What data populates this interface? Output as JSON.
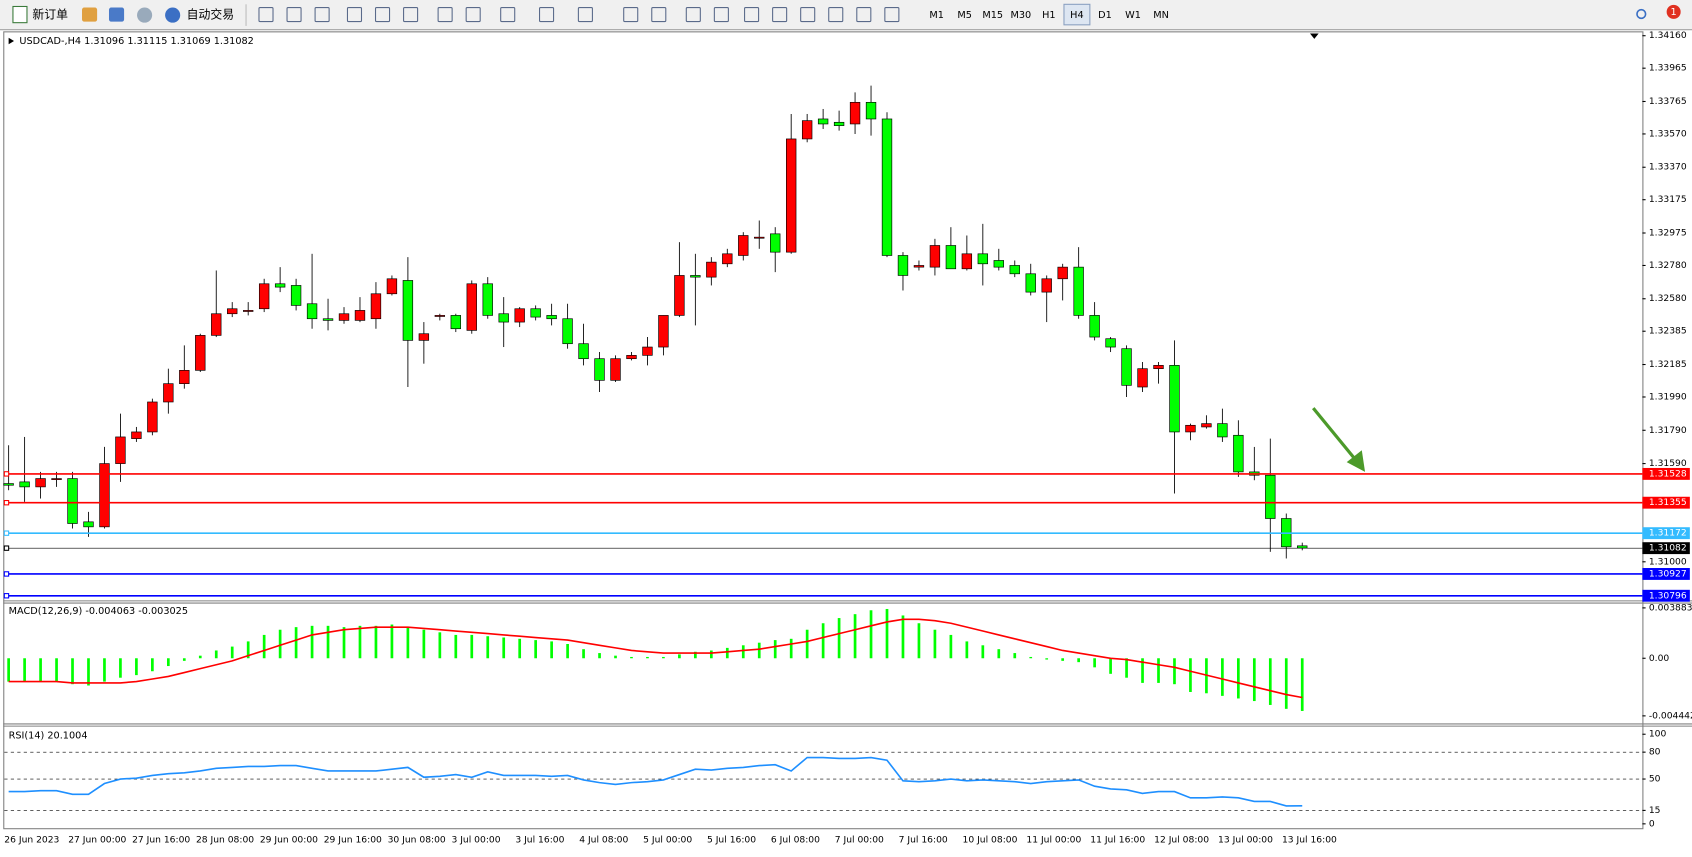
{
  "toolbar": {
    "new_order": "新订单",
    "auto_trading": "自动交易",
    "timeframes": [
      "M1",
      "M5",
      "M15",
      "M30",
      "H1",
      "H4",
      "D1",
      "W1",
      "MN"
    ],
    "selected": "H4",
    "notifications": "1"
  },
  "chart_data": [
    {
      "type": "candlestick",
      "title": "USDCAD-,H4  1.31096 1.31115 1.31069 1.31082",
      "categories": [
        "26 Jun 2023",
        null,
        null,
        null,
        "27 Jun 00:00",
        null,
        null,
        null,
        "27 Jun 16:00",
        null,
        null,
        null,
        "28 Jun 08:00",
        null,
        null,
        null,
        "29 Jun 00:00",
        null,
        null,
        null,
        "29 Jun 16:00",
        null,
        null,
        null,
        "30 Jun 08:00",
        null,
        null,
        null,
        "3 Jul 00:00",
        null,
        null,
        null,
        "3 Jul 16:00",
        null,
        null,
        null,
        "4 Jul 08:00",
        null,
        null,
        null,
        "5 Jul 00:00",
        null,
        null,
        null,
        "5 Jul 16:00",
        null,
        null,
        null,
        "6 Jul 08:00",
        null,
        null,
        null,
        "7 Jul 00:00",
        null,
        null,
        null,
        "7 Jul 16:00",
        null,
        null,
        null,
        "10 Jul 08:00",
        null,
        null,
        null,
        "11 Jul 00:00",
        null,
        null,
        null,
        "11 Jul 16:00",
        null,
        null,
        null,
        "12 Jul 08:00",
        null,
        null,
        null,
        "13 Jul 00:00",
        null,
        null,
        null,
        "13 Jul 16:00",
        null
      ],
      "open": [
        1.3147,
        1.3148,
        1.3145,
        1.315,
        1.315,
        1.3124,
        1.3121,
        1.3159,
        1.3174,
        1.3178,
        1.3196,
        1.3207,
        1.3215,
        1.3236,
        1.3249,
        1.3251,
        1.3252,
        1.3267,
        1.3266,
        1.3255,
        1.3246,
        1.3245,
        1.3245,
        1.3246,
        1.3261,
        1.3269,
        1.3233,
        1.3248,
        1.3248,
        1.3239,
        1.3267,
        1.3249,
        1.3244,
        1.3252,
        1.3248,
        1.3246,
        1.3231,
        1.3222,
        1.3209,
        1.3222,
        1.3224,
        1.3229,
        1.3248,
        1.3272,
        1.3271,
        1.3279,
        1.3284,
        1.3295,
        1.3297,
        1.3286,
        1.3354,
        1.3366,
        1.3364,
        1.3363,
        1.3376,
        1.3366,
        1.3284,
        1.3277,
        1.3277,
        1.329,
        1.3276,
        1.3285,
        1.3281,
        1.3278,
        1.3273,
        1.3262,
        1.327,
        1.3277,
        1.3248,
        1.3234,
        1.3228,
        1.3205,
        1.3216,
        1.3218,
        1.3178,
        1.3181,
        1.3183,
        1.3176,
        1.3154,
        1.3152,
        1.3126,
        1.31096
      ],
      "high": [
        1.317,
        1.3175,
        1.3154,
        1.3154,
        1.3154,
        1.313,
        1.3169,
        1.3189,
        1.3181,
        1.3198,
        1.3216,
        1.323,
        1.3237,
        1.3275,
        1.3256,
        1.3256,
        1.327,
        1.3277,
        1.327,
        1.3285,
        1.3258,
        1.3253,
        1.3259,
        1.3268,
        1.3272,
        1.3283,
        1.3244,
        1.3249,
        1.3249,
        1.3269,
        1.3271,
        1.3259,
        1.3253,
        1.3254,
        1.3255,
        1.3255,
        1.3243,
        1.3226,
        1.3224,
        1.3226,
        1.3235,
        1.3248,
        1.3292,
        1.3285,
        1.3283,
        1.3288,
        1.3298,
        1.3305,
        1.3301,
        1.3369,
        1.3369,
        1.3372,
        1.3371,
        1.3382,
        1.3386,
        1.337,
        1.3286,
        1.3281,
        1.3294,
        1.3301,
        1.3296,
        1.3303,
        1.3288,
        1.3281,
        1.3279,
        1.3272,
        1.3279,
        1.3289,
        1.3256,
        1.3235,
        1.323,
        1.322,
        1.322,
        1.3233,
        1.3183,
        1.3188,
        1.3192,
        1.3185,
        1.3169,
        1.3174,
        1.3129,
        1.31115
      ],
      "low": [
        1.3143,
        1.3136,
        1.3138,
        1.3145,
        1.312,
        1.3115,
        1.312,
        1.3148,
        1.3172,
        1.3176,
        1.3189,
        1.3204,
        1.3214,
        1.3235,
        1.3247,
        1.3248,
        1.325,
        1.3262,
        1.3251,
        1.324,
        1.3239,
        1.3243,
        1.3244,
        1.324,
        1.326,
        1.3205,
        1.3219,
        1.3245,
        1.3238,
        1.3237,
        1.3246,
        1.3229,
        1.3241,
        1.3245,
        1.3242,
        1.3228,
        1.3218,
        1.3202,
        1.3208,
        1.3221,
        1.3218,
        1.3224,
        1.3247,
        1.3242,
        1.3266,
        1.3277,
        1.3281,
        1.3288,
        1.3274,
        1.3285,
        1.3352,
        1.336,
        1.3359,
        1.3357,
        1.3356,
        1.3283,
        1.3263,
        1.3275,
        1.3272,
        1.3276,
        1.3275,
        1.3266,
        1.3275,
        1.3271,
        1.326,
        1.3244,
        1.3257,
        1.3246,
        1.3233,
        1.3226,
        1.3199,
        1.3202,
        1.3207,
        1.3141,
        1.3173,
        1.318,
        1.3172,
        1.3151,
        1.3149,
        1.3106,
        1.3102,
        1.31069
      ],
      "close": [
        1.3146,
        1.3145,
        1.315,
        1.315,
        1.3123,
        1.3121,
        1.3159,
        1.3175,
        1.3178,
        1.3196,
        1.3207,
        1.3215,
        1.3236,
        1.3249,
        1.3252,
        1.3251,
        1.3267,
        1.3265,
        1.3254,
        1.3246,
        1.3245,
        1.3249,
        1.3251,
        1.3261,
        1.327,
        1.3233,
        1.3237,
        1.3248,
        1.324,
        1.3267,
        1.3248,
        1.3244,
        1.3252,
        1.3247,
        1.3246,
        1.3231,
        1.3222,
        1.3209,
        1.3222,
        1.3224,
        1.3229,
        1.3248,
        1.3272,
        1.3271,
        1.328,
        1.3285,
        1.3296,
        1.3295,
        1.3286,
        1.3354,
        1.3365,
        1.3363,
        1.3362,
        1.3376,
        1.3366,
        1.3284,
        1.3272,
        1.3278,
        1.329,
        1.3276,
        1.3285,
        1.3279,
        1.3277,
        1.3273,
        1.3262,
        1.327,
        1.3277,
        1.3248,
        1.3235,
        1.3229,
        1.3206,
        1.3216,
        1.3218,
        1.3178,
        1.3182,
        1.3183,
        1.3175,
        1.3154,
        1.3152,
        1.3126,
        1.3109,
        1.31082
      ],
      "up_color": "#ff0000",
      "down_color": "#00ff00",
      "ylim": [
        1.30775,
        1.3418
      ],
      "yticks": [
        {
          "value": 1.3416,
          "label": "1.34160"
        },
        1.33965,
        1.33765,
        {
          "value": 1.3357,
          "label": "1.33570"
        },
        {
          "value": 1.3337,
          "label": "1.33370"
        },
        1.33175,
        1.32975,
        {
          "value": 1.3278,
          "label": "1.32780"
        },
        {
          "value": 1.3258,
          "label": "1.32580"
        },
        1.32385,
        1.32185,
        {
          "value": 1.3199,
          "label": "1.31990"
        },
        {
          "value": 1.3179,
          "label": "1.31790"
        },
        {
          "value": 1.3159,
          "label": "1.31590"
        },
        {
          "value": 1.31,
          "label": "1.31000"
        }
      ],
      "hlines": [
        {
          "value": 1.31528,
          "color": "#ff0000"
        },
        {
          "value": 1.31355,
          "color": "#ff0000"
        },
        {
          "value": 1.31172,
          "color": "#33bbff"
        },
        {
          "value": 1.31082,
          "color": "#000000"
        },
        {
          "value": 1.30927,
          "color": "#0000ff"
        },
        {
          "value": 1.30796,
          "color": "#0000ff"
        }
      ]
    },
    {
      "type": "macd",
      "title": "MACD(12,26,9) -0.004063 -0.003025",
      "values": [
        -0.0018,
        -0.0018,
        -0.0018,
        -0.0018,
        -0.002,
        -0.0021,
        -0.0018,
        -0.0015,
        -0.0013,
        -0.001,
        -0.0006,
        -0.0002,
        0.0002,
        0.0006,
        0.0009,
        0.0013,
        0.0018,
        0.0022,
        0.0024,
        0.0025,
        0.0025,
        0.0024,
        0.0025,
        0.0025,
        0.0026,
        0.0024,
        0.0022,
        0.002,
        0.0018,
        0.0018,
        0.0017,
        0.0016,
        0.0015,
        0.0014,
        0.0013,
        0.0011,
        0.0007,
        0.0004,
        0.0002,
        0.0001,
        0.0001,
        0.0001,
        0.0003,
        0.0005,
        0.0006,
        0.0008,
        0.001,
        0.0012,
        0.0014,
        0.0015,
        0.0022,
        0.0027,
        0.0031,
        0.0034,
        0.0037,
        0.0038,
        0.0033,
        0.0027,
        0.0022,
        0.0018,
        0.0013,
        0.001,
        0.0007,
        0.0004,
        0.0001,
        -0.0001,
        -0.0002,
        -0.0003,
        -0.0007,
        -0.0012,
        -0.0015,
        -0.0019,
        -0.0019,
        -0.002,
        -0.0026,
        -0.0027,
        -0.0029,
        -0.0031,
        -0.0033,
        -0.0036,
        -0.0039,
        -0.004063
      ],
      "signal_values": [
        -0.0018,
        -0.0018,
        -0.0018,
        -0.0018,
        -0.0019,
        -0.0019,
        -0.0019,
        -0.0019,
        -0.0018,
        -0.0016,
        -0.0014,
        -0.0011,
        -0.0008,
        -0.0005,
        -0.0002,
        0.0002,
        0.0006,
        0.001,
        0.0014,
        0.0018,
        0.002,
        0.0022,
        0.0023,
        0.0024,
        0.0024,
        0.0024,
        0.0023,
        0.0022,
        0.0021,
        0.002,
        0.0019,
        0.0018,
        0.0017,
        0.0016,
        0.0015,
        0.0014,
        0.0012,
        0.001,
        0.0008,
        0.0006,
        0.0005,
        0.0004,
        0.0004,
        0.0004,
        0.0004,
        0.0005,
        0.0006,
        0.0007,
        0.0009,
        0.0011,
        0.0013,
        0.0016,
        0.0019,
        0.0022,
        0.0025,
        0.0028,
        0.003,
        0.003,
        0.0029,
        0.0027,
        0.0024,
        0.0021,
        0.0018,
        0.0015,
        0.0012,
        0.0009,
        0.0006,
        0.0004,
        0.0002,
        0.0,
        -0.0001,
        -0.0003,
        -0.0005,
        -0.0007,
        -0.001,
        -0.0013,
        -0.0016,
        -0.0019,
        -0.0022,
        -0.0025,
        -0.0028,
        -0.003025
      ],
      "color": "#00ff00",
      "signal_color": "#ff0000",
      "ylim": [
        -0.004442,
        0.003883
      ],
      "yticks": [
        0.003883,
        {
          "value": 0,
          "label": "0.00"
        },
        -0.004442
      ],
      "grid": false
    },
    {
      "type": "line",
      "title": "RSI(14) 20.1004",
      "values": [
        36,
        36,
        37,
        37,
        33,
        33,
        45,
        50,
        51,
        54,
        56,
        57,
        59,
        62,
        63,
        64,
        64,
        65,
        65,
        62,
        59,
        59,
        59,
        59,
        61,
        63,
        52,
        53,
        55,
        52,
        58,
        54,
        54,
        54,
        53,
        54,
        49,
        46,
        44,
        46,
        47,
        49,
        55,
        61,
        60,
        62,
        63,
        65,
        66,
        59,
        74,
        74,
        73,
        73,
        74,
        71,
        48,
        47,
        48,
        50,
        48,
        49,
        48,
        47,
        45,
        47,
        48,
        49,
        42,
        39,
        38,
        34,
        36,
        36,
        29,
        29,
        30,
        29,
        25,
        25,
        20,
        20.1004
      ],
      "color": "#1e8fff",
      "ylim": [
        0,
        100
      ],
      "yticks": [
        100,
        80,
        50,
        15,
        0
      ],
      "grid": true
    }
  ]
}
